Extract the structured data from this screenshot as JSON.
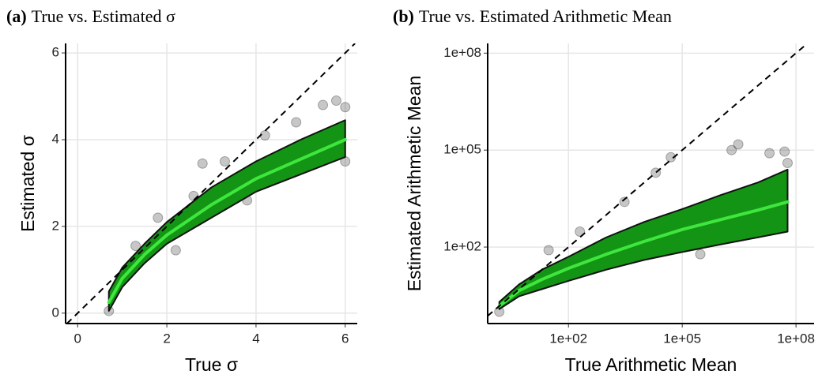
{
  "chart_data": [
    {
      "type": "scatter",
      "title_prefix": "(a)",
      "title": "True vs. Estimated σ",
      "x_label": "True σ",
      "y_label": "Estimated σ",
      "xlim": [
        -0.27,
        6.27
      ],
      "ylim": [
        -0.24,
        6.22
      ],
      "xticks": [
        0,
        2,
        4,
        6
      ],
      "yticks": [
        0,
        2,
        4,
        6
      ],
      "log_x": false,
      "log_y": false,
      "grid": true,
      "identity_line": true,
      "band": {
        "color": "#149414",
        "x": [
          0.7,
          1,
          1.5,
          2,
          3,
          4,
          5,
          6
        ],
        "lower": [
          0.05,
          0.6,
          1.15,
          1.6,
          2.2,
          2.8,
          3.2,
          3.6
        ],
        "upper": [
          0.5,
          1.05,
          1.6,
          2.1,
          2.9,
          3.5,
          4.0,
          4.45
        ]
      },
      "trend": {
        "color": "#3ee63e",
        "x": [
          0.7,
          1,
          1.5,
          2,
          3,
          4,
          5,
          6
        ],
        "values": [
          0.25,
          0.8,
          1.35,
          1.8,
          2.5,
          3.1,
          3.55,
          4.0
        ]
      },
      "points": {
        "color": "#000000",
        "x": [
          1.3,
          1.8,
          2.6,
          2.8,
          3.3,
          4.2,
          4.9,
          5.5,
          5.8,
          6,
          0.7,
          6,
          3.8,
          2.2
        ],
        "y": [
          1.55,
          2.2,
          2.7,
          3.45,
          3.5,
          4.1,
          4.4,
          4.8,
          4.9,
          4.75,
          0.05,
          3.5,
          2.6,
          1.45
        ]
      }
    },
    {
      "type": "scatter",
      "title_prefix": "(b)",
      "title": "True vs. Estimated Arithmetic Mean",
      "x_label": "True Arithmetic Mean",
      "y_label": "Estimated Arithmetic Mean",
      "xlim": [
        0.74,
        300000000
      ],
      "ylim": [
        0.43,
        200000000
      ],
      "xticks": [
        {
          "value": 100,
          "label": "1e+02"
        },
        {
          "value": 100000,
          "label": "1e+05"
        },
        {
          "value": 100000000,
          "label": "1e+08"
        }
      ],
      "yticks": [
        {
          "value": 100,
          "label": "1e+02"
        },
        {
          "value": 100000,
          "label": "1e+05"
        },
        {
          "value": 100000000,
          "label": "1e+08"
        }
      ],
      "log_x": true,
      "log_y": true,
      "grid": true,
      "identity_line": true,
      "band": {
        "color": "#149414",
        "x": [
          1.5,
          5,
          20,
          100,
          1000,
          10000,
          100000,
          1000000,
          10000000,
          60000000
        ],
        "lower": [
          1.2,
          3,
          5,
          9,
          20,
          40,
          70,
          120,
          200,
          300
        ],
        "upper": [
          2,
          7,
          20,
          50,
          200,
          600,
          1500,
          4000,
          10000,
          25000
        ]
      },
      "trend": {
        "color": "#3ee63e",
        "x": [
          1.5,
          5,
          20,
          100,
          1000,
          10000,
          100000,
          1000000,
          10000000,
          60000000
        ],
        "values": [
          1.5,
          4.5,
          10,
          22,
          60,
          150,
          350,
          700,
          1400,
          2500
        ]
      },
      "points": {
        "color": "#000000",
        "x": [
          30,
          200,
          3000,
          20000,
          50000,
          2000000,
          3000000,
          20000000,
          50000000,
          60000000,
          1.5,
          500,
          300000
        ],
        "y": [
          80,
          300,
          2500,
          20000,
          60000,
          100000,
          150000,
          80000,
          90000,
          40000,
          1,
          30,
          60
        ]
      }
    }
  ]
}
